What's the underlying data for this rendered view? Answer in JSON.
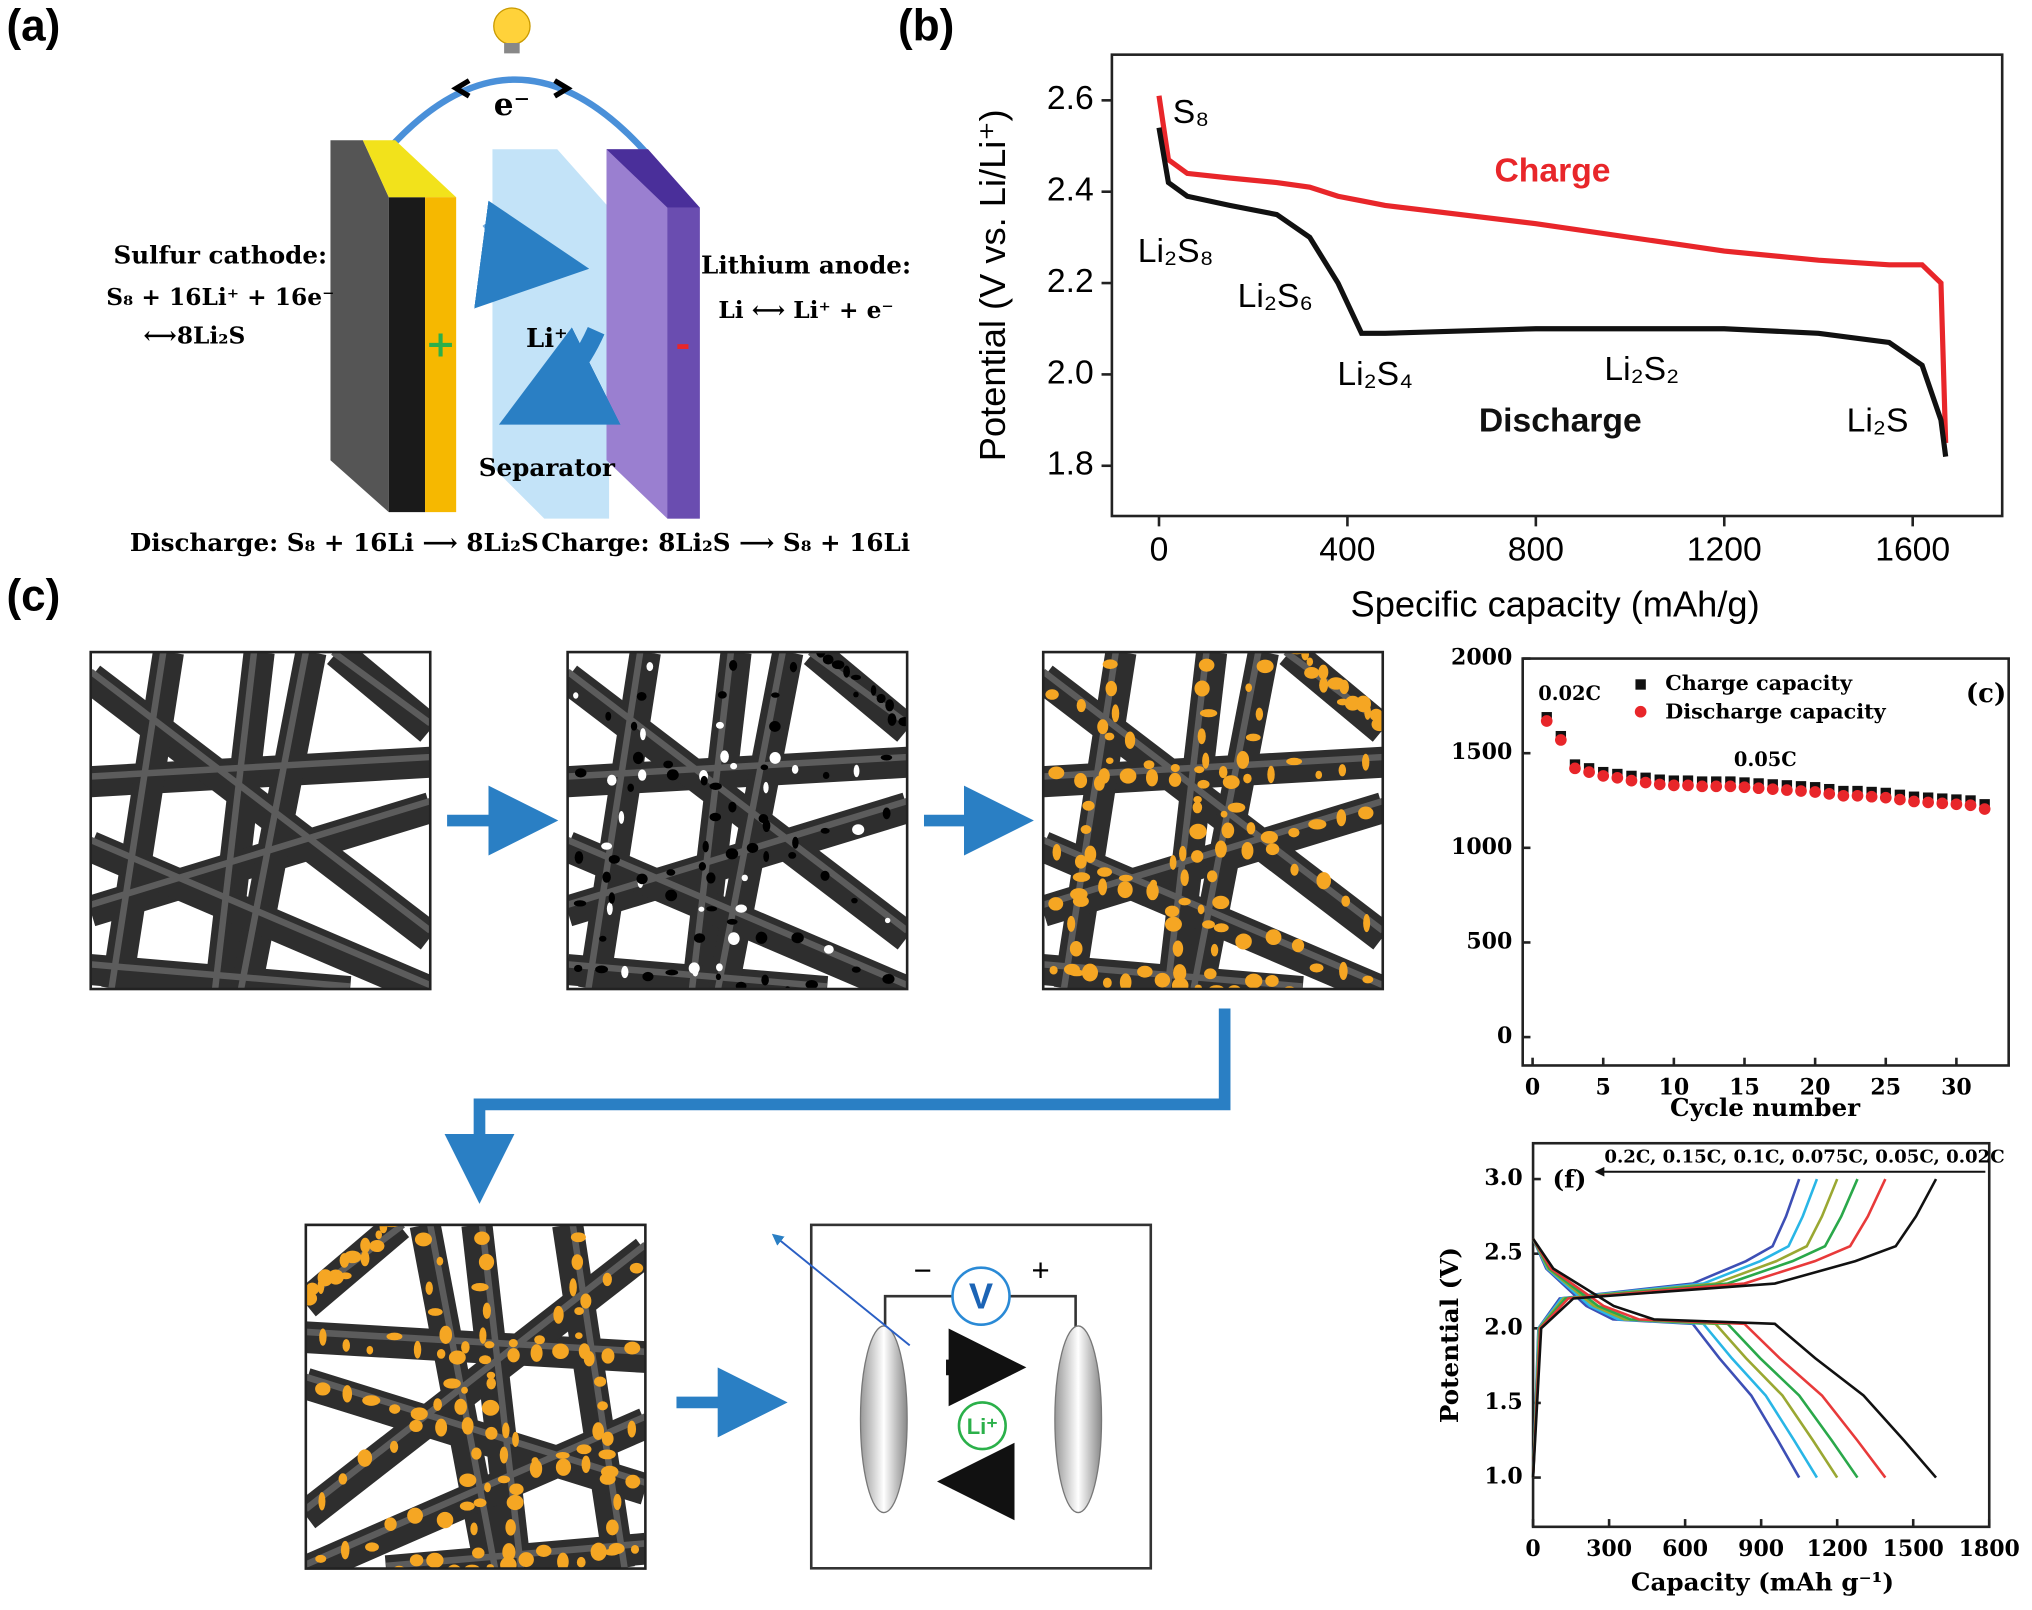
{
  "panel_a": {
    "label": "(a)",
    "electron": "e⁻",
    "cathode_title": "Sulfur cathode:",
    "cathode_eq1": "S₈ + 16Li⁺ + 16e⁻",
    "cathode_eq2": "⟷8Li₂S",
    "anode_title": "Lithium anode:",
    "anode_eq": "Li ⟷ Li⁺ + e⁻",
    "ion": "Li⁺",
    "separator": "Separator",
    "plus": "+",
    "minus": "-",
    "discharge": "Discharge: S₈ + 16Li ⟶ 8Li₂S",
    "charge": "Charge: 8Li₂S ⟶ S₈ + 16Li"
  },
  "panel_c": {
    "label": "(c)",
    "voltmeter": "V",
    "minus": "−",
    "plus": "+",
    "ion": "Li⁺"
  },
  "chart_data": [
    {
      "type": "line",
      "title": "(b)",
      "xlabel": "Specific capacity (mAh/g)",
      "ylabel": "Potential (V vs. Li/Li⁺)",
      "x": [
        0,
        20,
        60,
        150,
        250,
        320,
        380,
        430,
        480,
        800,
        1200,
        1400,
        1550,
        1620,
        1660,
        1670
      ],
      "series": [
        {
          "name": "Charge",
          "color": "#e8262a",
          "values": [
            2.61,
            2.47,
            2.44,
            2.43,
            2.42,
            2.41,
            2.39,
            2.38,
            2.37,
            2.33,
            2.27,
            2.25,
            2.24,
            2.24,
            2.2,
            1.85
          ]
        },
        {
          "name": "Discharge",
          "color": "#111111",
          "values": [
            2.54,
            2.42,
            2.39,
            2.37,
            2.35,
            2.3,
            2.2,
            2.09,
            2.09,
            2.1,
            2.1,
            2.09,
            2.07,
            2.02,
            1.9,
            1.82
          ]
        }
      ],
      "annotations": [
        "S₈",
        "Li₂S₈",
        "Li₂S₆",
        "Li₂S₄",
        "Li₂S₂",
        "Li₂S"
      ],
      "xlim": [
        -100,
        1790
      ],
      "ylim": [
        1.69,
        2.7
      ],
      "xticks": [
        0,
        400,
        800,
        1200,
        1600
      ],
      "yticks": [
        1.8,
        {
          "value": 2,
          "label": "2.0"
        },
        2.2,
        2.4,
        2.6
      ]
    },
    {
      "type": "scatter",
      "title": "(c)",
      "xlabel": "Cycle number",
      "x": [
        1,
        2,
        3,
        4,
        5,
        6,
        7,
        8,
        9,
        10,
        11,
        12,
        13,
        14,
        15,
        16,
        17,
        18,
        19,
        20,
        21,
        22,
        23,
        24,
        25,
        26,
        27,
        28,
        29,
        30,
        31,
        32
      ],
      "series": [
        {
          "name": "Charge capacity",
          "color": "#111111",
          "marker": "square",
          "values": [
            1690,
            1590,
            1440,
            1420,
            1400,
            1390,
            1380,
            1370,
            1360,
            1355,
            1355,
            1350,
            1350,
            1350,
            1345,
            1340,
            1335,
            1330,
            1325,
            1320,
            1310,
            1300,
            1300,
            1295,
            1290,
            1280,
            1270,
            1265,
            1260,
            1255,
            1250,
            1230
          ]
        },
        {
          "name": "Discharge capacity",
          "color": "#e8262a",
          "marker": "circle",
          "values": [
            1670,
            1570,
            1420,
            1400,
            1380,
            1370,
            1355,
            1345,
            1335,
            1330,
            1330,
            1325,
            1325,
            1325,
            1320,
            1315,
            1310,
            1305,
            1300,
            1295,
            1285,
            1275,
            1275,
            1270,
            1265,
            1255,
            1245,
            1240,
            1235,
            1230,
            1225,
            1205
          ]
        }
      ],
      "annotations": [
        "0.02C",
        "0.05C"
      ],
      "xlim": [
        -0.7,
        33.7
      ],
      "ylim": [
        -150,
        2000
      ],
      "xticks": [
        0,
        5,
        10,
        15,
        20,
        25,
        30
      ],
      "yticks": [
        0,
        500,
        1000,
        1500,
        2000
      ]
    },
    {
      "type": "line",
      "title": "(f)",
      "legend_text": "0.2C, 0.15C, 0.1C, 0.075C, 0.05C, 0.02C",
      "xlabel": "Capacity (mAh g⁻¹)",
      "ylabel": "Potential (V)",
      "series": [
        {
          "color": "#3d4fb5",
          "x": [
            0,
            52,
            210,
            315,
            630,
            735,
            861,
            966,
            1050
          ],
          "values": [
            2.6,
            2.4,
            2.15,
            2.06,
            2.03,
            1.8,
            1.55,
            1.25,
            1.0
          ]
        },
        {
          "color": "#3d4fb5",
          "x": [
            0,
            21,
            105,
            630,
            840,
            945,
            998,
            1050
          ],
          "values": [
            1.0,
            2.0,
            2.2,
            2.3,
            2.45,
            2.55,
            2.75,
            3.0
          ]
        },
        {
          "color": "#29b6e6",
          "x": [
            0,
            56,
            224,
            336,
            672,
            784,
            918,
            1030,
            1120
          ],
          "values": [
            2.6,
            2.4,
            2.15,
            2.06,
            2.03,
            1.8,
            1.55,
            1.25,
            1.0
          ]
        },
        {
          "color": "#29b6e6",
          "x": [
            0,
            22,
            112,
            672,
            896,
            1008,
            1064,
            1120
          ],
          "values": [
            1.0,
            2.0,
            2.2,
            2.3,
            2.45,
            2.55,
            2.75,
            3.0
          ]
        },
        {
          "color": "#9aa832",
          "x": [
            0,
            60,
            240,
            360,
            720,
            840,
            984,
            1104,
            1200
          ],
          "values": [
            2.6,
            2.4,
            2.15,
            2.06,
            2.03,
            1.8,
            1.55,
            1.25,
            1.0
          ]
        },
        {
          "color": "#9aa832",
          "x": [
            0,
            24,
            120,
            720,
            960,
            1080,
            1140,
            1200
          ],
          "values": [
            1.0,
            2.0,
            2.2,
            2.3,
            2.45,
            2.55,
            2.75,
            3.0
          ]
        },
        {
          "color": "#2aa84a",
          "x": [
            0,
            64,
            256,
            384,
            768,
            896,
            1050,
            1178,
            1280
          ],
          "values": [
            2.6,
            2.4,
            2.15,
            2.06,
            2.03,
            1.8,
            1.55,
            1.25,
            1.0
          ]
        },
        {
          "color": "#2aa84a",
          "x": [
            0,
            26,
            128,
            768,
            1024,
            1152,
            1216,
            1280
          ],
          "values": [
            1.0,
            2.0,
            2.2,
            2.3,
            2.45,
            2.55,
            2.75,
            3.0
          ]
        },
        {
          "color": "#e83a3a",
          "x": [
            0,
            70,
            278,
            417,
            834,
            973,
            1140,
            1279,
            1390
          ],
          "values": [
            2.6,
            2.4,
            2.15,
            2.06,
            2.03,
            1.8,
            1.55,
            1.25,
            1.0
          ]
        },
        {
          "color": "#e83a3a",
          "x": [
            0,
            28,
            139,
            834,
            1112,
            1251,
            1321,
            1390
          ],
          "values": [
            1.0,
            2.0,
            2.2,
            2.3,
            2.45,
            2.55,
            2.75,
            3.0
          ]
        },
        {
          "color": "#111111",
          "x": [
            0,
            80,
            318,
            477,
            954,
            1113,
            1304,
            1463,
            1590
          ],
          "values": [
            2.6,
            2.4,
            2.15,
            2.06,
            2.03,
            1.8,
            1.55,
            1.25,
            1.0
          ]
        },
        {
          "color": "#111111",
          "x": [
            0,
            32,
            159,
            954,
            1272,
            1431,
            1511,
            1590
          ],
          "values": [
            1.0,
            2.0,
            2.2,
            2.3,
            2.45,
            2.55,
            2.75,
            3.0
          ]
        }
      ],
      "xlim": [
        0,
        1800
      ],
      "ylim": [
        0.67,
        3.24
      ],
      "xticks": [
        0,
        300,
        600,
        900,
        1200,
        1500,
        1800
      ],
      "yticks": [
        {
          "value": 1,
          "label": "1.0"
        },
        1.5,
        {
          "value": 2,
          "label": "2.0"
        },
        2.5,
        {
          "value": 3,
          "label": "3.0"
        }
      ]
    }
  ]
}
